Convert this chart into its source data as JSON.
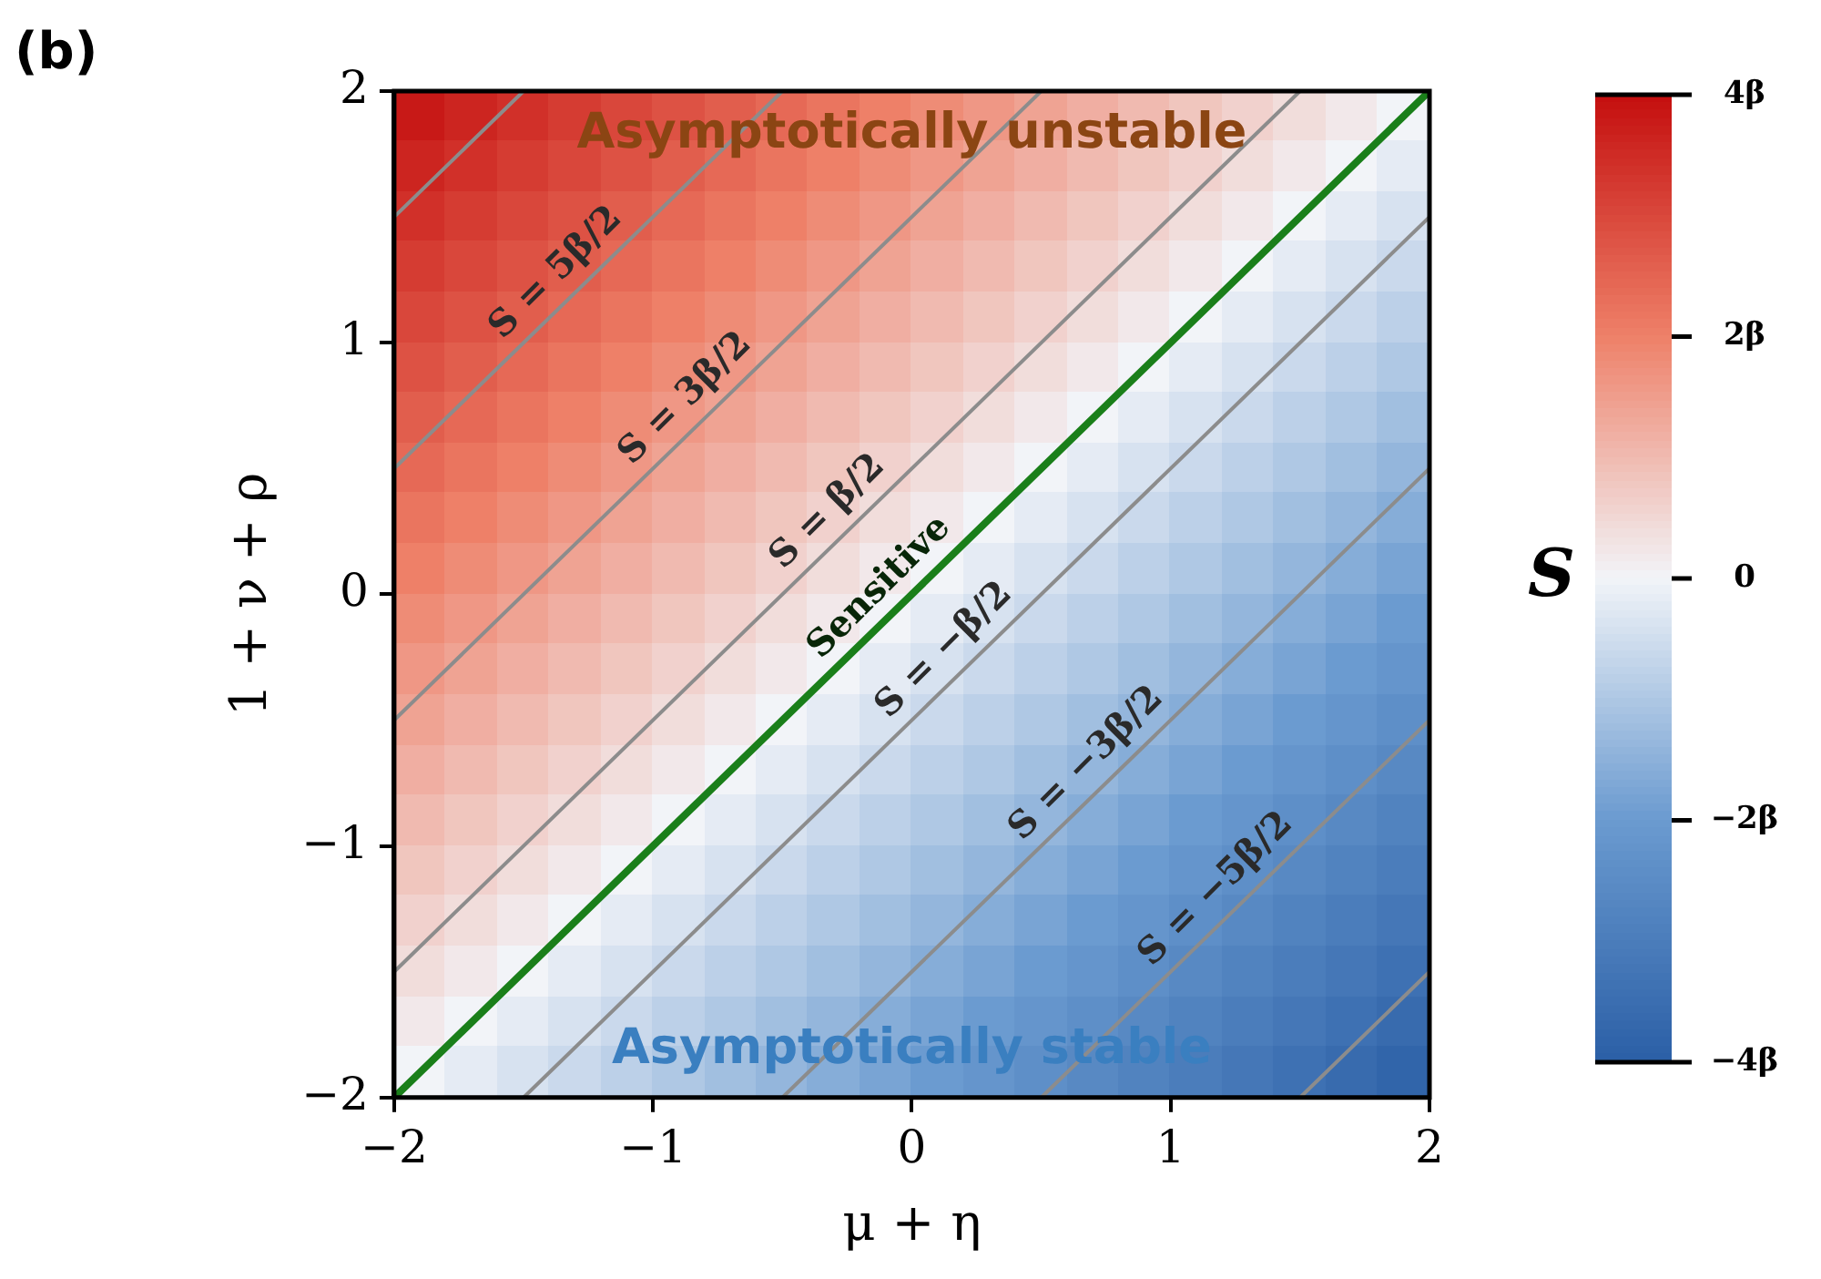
{
  "chart_data": {
    "type": "heatmap",
    "xlabel": "μ + η",
    "ylabel": "1 + ν + ρ",
    "clabel": "S",
    "xlim": [
      -2,
      2
    ],
    "ylim": [
      -2,
      2
    ],
    "xticks": [
      {
        "value": -2,
        "label": "−2"
      },
      {
        "value": -1,
        "label": "−1"
      },
      0,
      1,
      2
    ],
    "yticks": [
      {
        "value": -2,
        "label": "−2"
      },
      {
        "value": -1,
        "label": "−1"
      },
      0,
      1,
      2
    ],
    "clim": [
      -4,
      4
    ],
    "cticks": [
      {
        "value": -4,
        "label": "−4β"
      },
      {
        "value": -2,
        "label": "−2β"
      },
      0,
      {
        "value": 2,
        "label": "2β"
      },
      {
        "value": 4,
        "label": "4β"
      }
    ],
    "x": [
      -1.9,
      -1.7,
      -1.5,
      -1.3,
      -1.1,
      -0.9,
      -0.7,
      -0.5,
      -0.3,
      -0.1,
      0.1,
      0.3,
      0.5,
      0.7,
      0.9,
      1.1,
      1.3,
      1.5,
      1.7,
      1.9
    ],
    "y": [
      1.9,
      1.7,
      1.5,
      1.3,
      1.1,
      0.9,
      0.7,
      0.5,
      0.3,
      0.1,
      -0.1,
      -0.3,
      -0.5,
      -0.7,
      -0.9,
      -1.1,
      -1.3,
      -1.5,
      -1.7,
      -1.9
    ],
    "cells": [
      [
        3.8,
        3.6,
        3.4,
        3.2,
        3,
        2.8,
        2.6,
        2.4,
        2.2,
        2,
        1.8,
        1.6,
        1.4,
        1.2,
        1,
        0.8,
        0.6,
        0.4,
        0.2,
        0
      ],
      [
        3.6,
        3.4,
        3.2,
        3,
        2.8,
        2.6,
        2.4,
        2.2,
        2,
        1.8,
        1.6,
        1.4,
        1.2,
        1,
        0.8,
        0.6,
        0.4,
        0.2,
        0,
        -0.2
      ],
      [
        3.4,
        3.2,
        3,
        2.8,
        2.6,
        2.4,
        2.2,
        2,
        1.8,
        1.6,
        1.4,
        1.2,
        1,
        0.8,
        0.6,
        0.4,
        0.2,
        0,
        -0.2,
        -0.4
      ],
      [
        3.2,
        3,
        2.8,
        2.6,
        2.4,
        2.2,
        2,
        1.8,
        1.6,
        1.4,
        1.2,
        1,
        0.8,
        0.6,
        0.4,
        0.2,
        0,
        -0.2,
        -0.4,
        -0.6
      ],
      [
        3,
        2.8,
        2.6,
        2.4,
        2.2,
        2,
        1.8,
        1.6,
        1.4,
        1.2,
        1,
        0.8,
        0.6,
        0.4,
        0.2,
        0,
        -0.2,
        -0.4,
        -0.6,
        -0.8
      ],
      [
        2.8,
        2.6,
        2.4,
        2.2,
        2,
        1.8,
        1.6,
        1.4,
        1.2,
        1,
        0.8,
        0.6,
        0.4,
        0.2,
        0,
        -0.2,
        -0.4,
        -0.6,
        -0.8,
        -1
      ],
      [
        2.6,
        2.4,
        2.2,
        2,
        1.8,
        1.6,
        1.4,
        1.2,
        1,
        0.8,
        0.6,
        0.4,
        0.2,
        0,
        -0.2,
        -0.4,
        -0.6,
        -0.8,
        -1,
        -1.2
      ],
      [
        2.4,
        2.2,
        2,
        1.8,
        1.6,
        1.4,
        1.2,
        1,
        0.8,
        0.6,
        0.4,
        0.2,
        0,
        -0.2,
        -0.4,
        -0.6,
        -0.8,
        -1,
        -1.2,
        -1.4
      ],
      [
        2.2,
        2,
        1.8,
        1.6,
        1.4,
        1.2,
        1,
        0.8,
        0.6,
        0.4,
        0.2,
        0,
        -0.2,
        -0.4,
        -0.6,
        -0.8,
        -1,
        -1.2,
        -1.4,
        -1.6
      ],
      [
        2,
        1.8,
        1.6,
        1.4,
        1.2,
        1,
        0.8,
        0.6,
        0.4,
        0.2,
        0,
        -0.2,
        -0.4,
        -0.6,
        -0.8,
        -1,
        -1.2,
        -1.4,
        -1.6,
        -1.8
      ],
      [
        1.8,
        1.6,
        1.4,
        1.2,
        1,
        0.8,
        0.6,
        0.4,
        0.2,
        0,
        -0.2,
        -0.4,
        -0.6,
        -0.8,
        -1,
        -1.2,
        -1.4,
        -1.6,
        -1.8,
        -2
      ],
      [
        1.6,
        1.4,
        1.2,
        1,
        0.8,
        0.6,
        0.4,
        0.2,
        0,
        -0.2,
        -0.4,
        -0.6,
        -0.8,
        -1,
        -1.2,
        -1.4,
        -1.6,
        -1.8,
        -2,
        -2.2
      ],
      [
        1.4,
        1.2,
        1,
        0.8,
        0.6,
        0.4,
        0.2,
        0,
        -0.2,
        -0.4,
        -0.6,
        -0.8,
        -1,
        -1.2,
        -1.4,
        -1.6,
        -1.8,
        -2,
        -2.2,
        -2.4
      ],
      [
        1.2,
        1,
        0.8,
        0.6,
        0.4,
        0.2,
        0,
        -0.2,
        -0.4,
        -0.6,
        -0.8,
        -1,
        -1.2,
        -1.4,
        -1.6,
        -1.8,
        -2,
        -2.2,
        -2.4,
        -2.6
      ],
      [
        1,
        0.8,
        0.6,
        0.4,
        0.2,
        0,
        -0.2,
        -0.4,
        -0.6,
        -0.8,
        -1,
        -1.2,
        -1.4,
        -1.6,
        -1.8,
        -2,
        -2.2,
        -2.4,
        -2.6,
        -2.8
      ],
      [
        0.8,
        0.6,
        0.4,
        0.2,
        0,
        -0.2,
        -0.4,
        -0.6,
        -0.8,
        -1,
        -1.2,
        -1.4,
        -1.6,
        -1.8,
        -2,
        -2.2,
        -2.4,
        -2.6,
        -2.8,
        -3
      ],
      [
        0.6,
        0.4,
        0.2,
        0,
        -0.2,
        -0.4,
        -0.6,
        -0.8,
        -1,
        -1.2,
        -1.4,
        -1.6,
        -1.8,
        -2,
        -2.2,
        -2.4,
        -2.6,
        -2.8,
        -3,
        -3.2
      ],
      [
        0.4,
        0.2,
        0,
        -0.2,
        -0.4,
        -0.6,
        -0.8,
        -1,
        -1.2,
        -1.4,
        -1.6,
        -1.8,
        -2,
        -2.2,
        -2.4,
        -2.6,
        -2.8,
        -3,
        -3.2,
        -3.4
      ],
      [
        0.2,
        0,
        -0.2,
        -0.4,
        -0.6,
        -0.8,
        -1,
        -1.2,
        -1.4,
        -1.6,
        -1.8,
        -2,
        -2.2,
        -2.4,
        -2.6,
        -2.8,
        -3,
        -3.2,
        -3.4,
        -3.6
      ],
      [
        0,
        -0.2,
        -0.4,
        -0.6,
        -0.8,
        -1,
        -1.2,
        -1.4,
        -1.6,
        -1.8,
        -2,
        -2.2,
        -2.4,
        -2.6,
        -2.8,
        -3,
        -3.2,
        -3.4,
        -3.6,
        -3.8
      ]
    ],
    "series": [
      {
        "type": "line",
        "color": "#8c8c8c",
        "x": [
          -2,
          -1.5
        ],
        "values": [
          1.5,
          2
        ]
      },
      {
        "type": "line",
        "color": "#8c8c8c",
        "x": [
          -2,
          -0.5
        ],
        "values": [
          0.5,
          2
        ]
      },
      {
        "type": "line",
        "color": "#8c8c8c",
        "x": [
          -2,
          0.5
        ],
        "values": [
          -0.5,
          2
        ]
      },
      {
        "type": "line",
        "color": "#8c8c8c",
        "x": [
          -2,
          1.5
        ],
        "values": [
          -1.5,
          2
        ]
      },
      {
        "type": "line",
        "color": "#1a7f1a",
        "x": [
          -2,
          2
        ],
        "values": [
          -2,
          2
        ]
      },
      {
        "type": "line",
        "color": "#8c8c8c",
        "x": [
          -1.5,
          2
        ],
        "values": [
          -2,
          1.5
        ]
      },
      {
        "type": "line",
        "color": "#8c8c8c",
        "x": [
          -0.5,
          2
        ],
        "values": [
          -2,
          0.5
        ]
      },
      {
        "type": "line",
        "color": "#8c8c8c",
        "x": [
          0.5,
          2
        ],
        "values": [
          -2,
          -0.5
        ]
      },
      {
        "type": "line",
        "color": "#8c8c8c",
        "x": [
          1.5,
          2
        ],
        "values": [
          -2,
          -1.5
        ]
      }
    ],
    "annotations": [
      "(b)",
      "Asymptotically unstable",
      "Asymptotically stable",
      {
        "text": "S = 5β/2",
        "x": -1.3,
        "y": 1.2
      },
      {
        "text": "S = 3β/2",
        "x": -0.8,
        "y": 0.7
      },
      {
        "text": "S = β/2",
        "x": -0.25,
        "y": 0.25
      },
      {
        "text": "Sensitive",
        "x": -0.05,
        "y": -0.05
      },
      {
        "text": "S = −β/2",
        "x": 0.2,
        "y": -0.3
      },
      {
        "text": "S = −3β/2",
        "x": 0.75,
        "y": -0.75
      },
      {
        "text": "S = −5β/2",
        "x": 1.25,
        "y": -1.25
      }
    ]
  }
}
